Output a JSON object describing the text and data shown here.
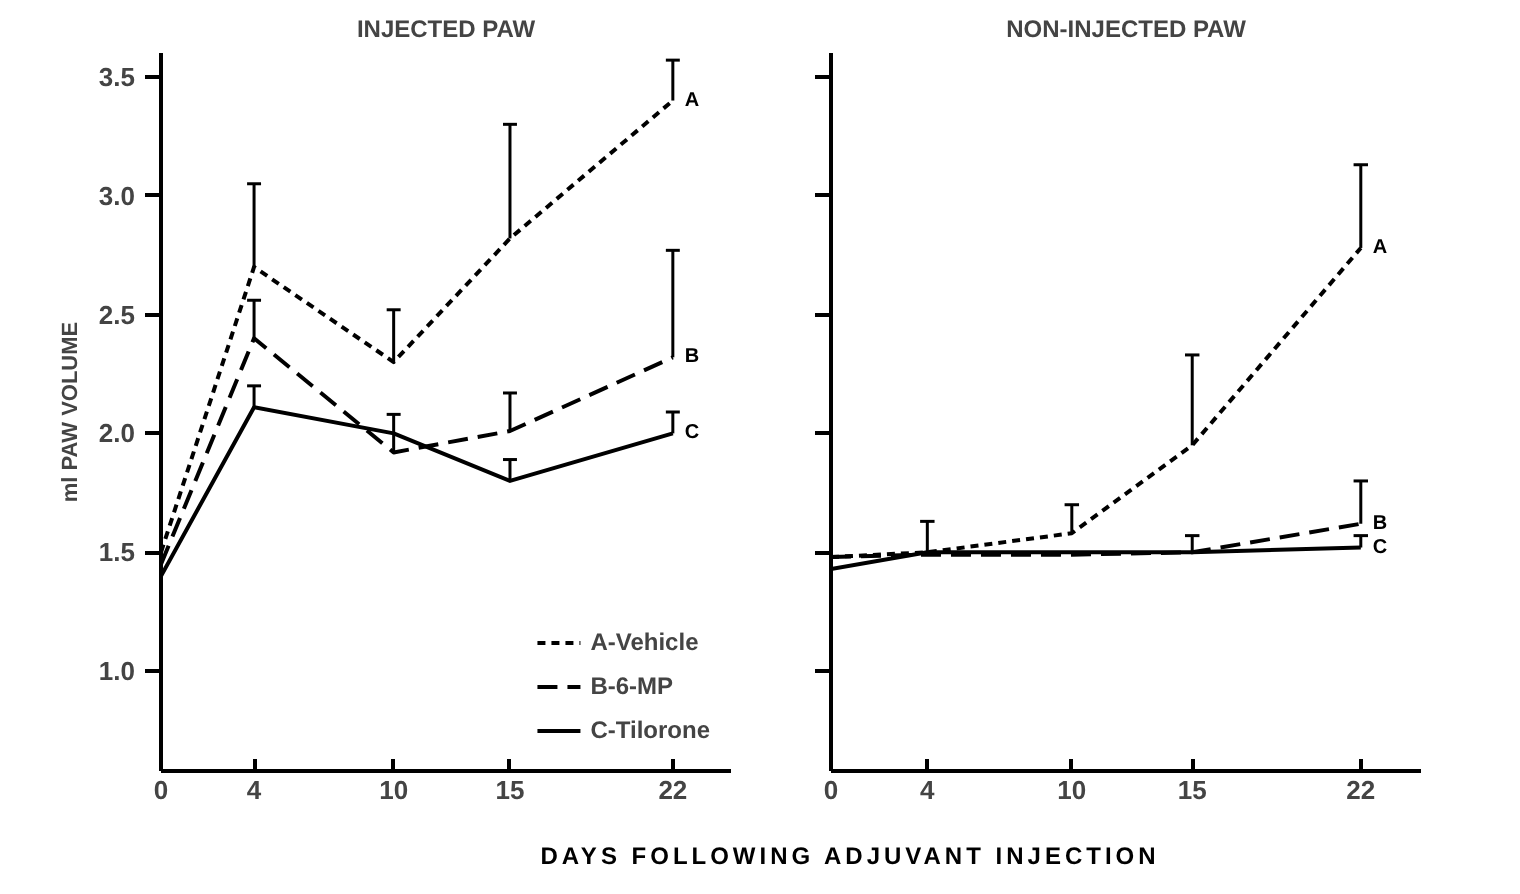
{
  "chart_data": [
    {
      "type": "line",
      "title": "INJECTED PAW",
      "xlabel": "DAYS FOLLOWING ADJUVANT INJECTION",
      "ylabel": "ml PAW VOLUME",
      "x": [
        0,
        4,
        10,
        15,
        22
      ],
      "xlim": [
        0,
        24.5
      ],
      "xticks": [
        0,
        4,
        10,
        15,
        22
      ],
      "yticks": [
        {
          "value": 1.0,
          "label": "1.0"
        },
        {
          "value": 1.5,
          "label": "1.5"
        },
        {
          "value": 2.0,
          "label": "2.0"
        },
        {
          "value": 2.5,
          "label": "2.5"
        },
        {
          "value": 3.0,
          "label": "3.0"
        },
        {
          "value": 3.5,
          "label": "3.5"
        }
      ],
      "grid": false,
      "legend": "bottom right",
      "ylim": [
        0.58,
        3.6
      ],
      "series": [
        {
          "name": "A-Vehicle",
          "color": "#000000",
          "line_style": "dotted",
          "values": [
            1.5,
            2.7,
            2.3,
            2.82,
            3.4
          ],
          "errors": [
            null,
            [
              2.7,
              3.05
            ],
            [
              2.3,
              2.52
            ],
            [
              2.82,
              3.3
            ],
            [
              3.4,
              3.57
            ]
          ]
        },
        {
          "name": "B-6-MP",
          "color": "#000000",
          "line_style": "dashed",
          "values": [
            1.45,
            2.4,
            1.92,
            2.01,
            2.32
          ],
          "errors": [
            null,
            [
              2.4,
              2.56
            ],
            [
              1.92,
              2.08
            ],
            [
              2.01,
              2.17
            ],
            [
              2.32,
              2.77
            ]
          ]
        },
        {
          "name": "C-Tilorone",
          "color": "#000000",
          "line_style": "solid",
          "values": [
            1.4,
            2.11,
            2.0,
            1.8,
            2.0
          ],
          "errors": [
            null,
            [
              2.11,
              2.2
            ],
            null,
            [
              1.8,
              1.89
            ],
            [
              2.0,
              2.09
            ]
          ]
        }
      ],
      "annotations": [
        "A",
        "B",
        "C"
      ]
    },
    {
      "type": "line",
      "title": "NON-INJECTED PAW",
      "x": [
        0,
        4,
        10,
        15,
        22
      ],
      "xlim": [
        0,
        24.5
      ],
      "xticks": [
        0,
        4,
        10,
        15,
        22
      ],
      "ylim": [
        0.58,
        3.6
      ],
      "yticks": [
        1.0,
        1.5,
        2.0,
        2.5,
        3.0,
        3.5
      ],
      "tick_labels": "x",
      "grid": false,
      "series": [
        {
          "color": "#000000",
          "line_style": "dotted",
          "values": [
            1.48,
            1.5,
            1.58,
            1.95,
            2.78
          ],
          "errors": [
            null,
            [
              1.5,
              1.63
            ],
            [
              1.58,
              1.7
            ],
            [
              1.95,
              2.33
            ],
            [
              2.78,
              3.13
            ]
          ]
        },
        {
          "color": "#000000",
          "line_style": "dashed",
          "values": [
            1.48,
            1.49,
            1.49,
            1.5,
            1.62
          ],
          "errors": [
            null,
            null,
            null,
            [
              1.5,
              1.57
            ],
            [
              1.62,
              1.8
            ]
          ]
        },
        {
          "color": "#000000",
          "line_style": "solid",
          "values": [
            1.43,
            1.5,
            1.5,
            1.5,
            1.52
          ],
          "errors": [
            null,
            null,
            null,
            null,
            [
              1.52,
              1.57
            ]
          ]
        }
      ],
      "annotations": [
        "A",
        "B",
        "C"
      ]
    }
  ]
}
